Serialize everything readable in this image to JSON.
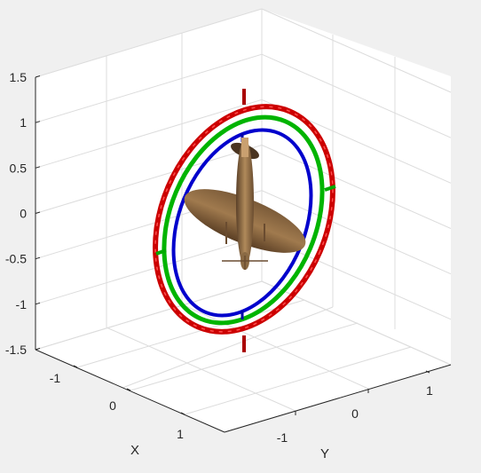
{
  "chart_data": {
    "type": "3d-surface",
    "title": "",
    "xlabel": "X",
    "ylabel": "Y",
    "zlabel": "",
    "xticks": [
      "-1",
      "0",
      "1"
    ],
    "yticks": [
      "-1",
      "0",
      "1"
    ],
    "zticks": [
      "-1.5",
      "-1",
      "-0.5",
      "0",
      "0.5",
      "1",
      "1.5"
    ],
    "zlim": [
      -1.5,
      1.5
    ],
    "grid": true,
    "objects": [
      {
        "name": "red-gimbal-ring",
        "color": "#cc0000",
        "radius": 1.0
      },
      {
        "name": "green-gimbal-ring",
        "color": "#00bb00",
        "radius": 0.9
      },
      {
        "name": "blue-gimbal-ring",
        "color": "#0000cc",
        "radius": 0.8
      },
      {
        "name": "aircraft-model",
        "color": "#a07a4e"
      }
    ]
  }
}
